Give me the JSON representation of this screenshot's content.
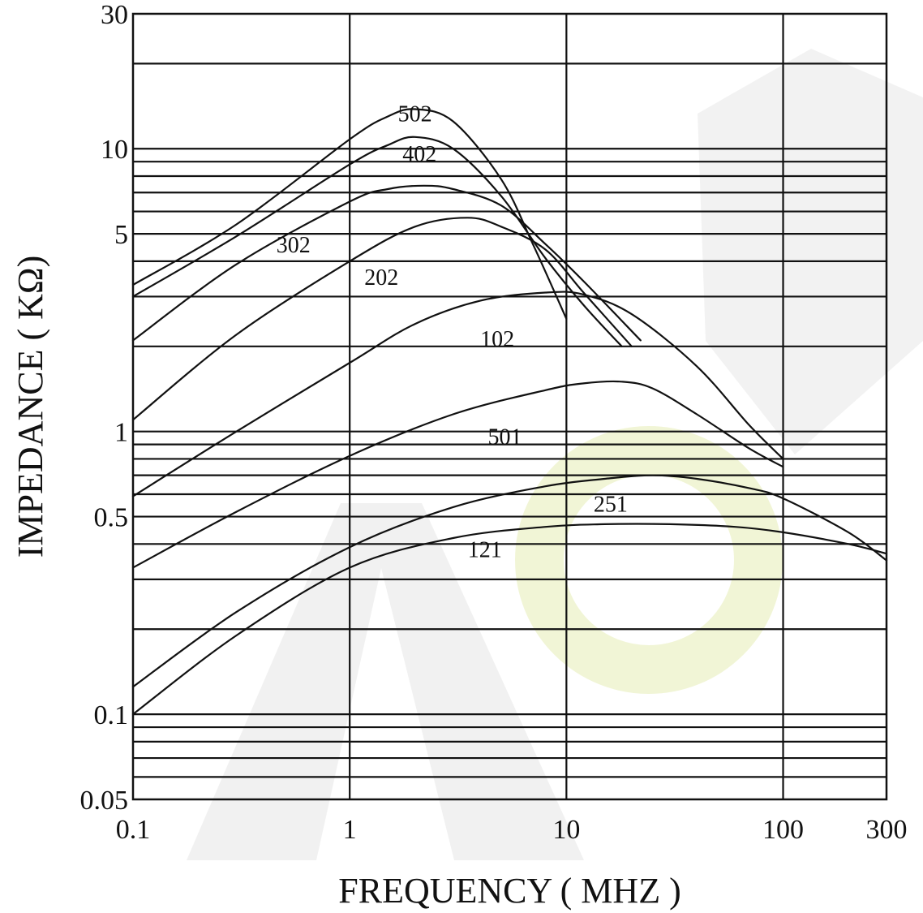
{
  "chart_data": {
    "type": "line",
    "xlabel": "FREQUENCY ( MHZ )",
    "ylabel": "IMPEDANCE ( KΩ)",
    "x_scale": "log",
    "y_scale": "log",
    "xlim": [
      0.1,
      300
    ],
    "ylim": [
      0.05,
      30
    ],
    "x_ticks": [
      {
        "value": 0.1,
        "label": "0.1"
      },
      {
        "value": 1,
        "label": "1"
      },
      {
        "value": 10,
        "label": "10"
      },
      {
        "value": 100,
        "label": "100"
      },
      {
        "value": 300,
        "label": "300"
      }
    ],
    "y_ticks": [
      {
        "value": 30,
        "label": "30"
      },
      {
        "value": 10,
        "label": "10"
      },
      {
        "value": 5,
        "label": "5"
      },
      {
        "value": 1,
        "label": "1"
      },
      {
        "value": 0.5,
        "label": "0.5"
      },
      {
        "value": 0.1,
        "label": "0.1"
      },
      {
        "value": 0.05,
        "label": "0.05"
      }
    ],
    "x_gridlines": [
      1,
      10,
      100
    ],
    "y_gridlines": [
      0.06,
      0.07,
      0.08,
      0.09,
      0.1,
      0.2,
      0.3,
      0.4,
      0.5,
      0.6,
      0.7,
      0.8,
      0.9,
      1,
      2,
      3,
      4,
      5,
      6,
      7,
      8,
      9,
      10,
      20
    ],
    "grid": true,
    "legend": "none",
    "watermark": {
      "color": "#e6e6e6",
      "accent": "#eef2cc"
    },
    "series": [
      {
        "name": "502",
        "label_at": [
          2.0,
          12.5
        ],
        "x": [
          0.1,
          0.3,
          1,
          1.5,
          2.0,
          3.0,
          5.0,
          7.0,
          10
        ],
        "y": [
          3.3,
          5.4,
          10.8,
          13.0,
          13.8,
          12.5,
          7.8,
          4.6,
          2.5
        ]
      },
      {
        "name": "402",
        "label_at": [
          2.1,
          9.0
        ],
        "x": [
          0.1,
          0.3,
          1,
          1.5,
          2.0,
          3.0,
          5.0,
          8.0,
          12,
          18
        ],
        "y": [
          3.0,
          4.9,
          8.8,
          10.3,
          11.0,
          10.0,
          6.8,
          4.1,
          2.8,
          2.0
        ]
      },
      {
        "name": "302",
        "label_at": [
          0.55,
          4.3
        ],
        "x": [
          0.1,
          0.3,
          1,
          1.5,
          2.2,
          3.0,
          5.0,
          8.0,
          12,
          22
        ],
        "y": [
          2.1,
          3.9,
          6.5,
          7.2,
          7.4,
          7.2,
          6.3,
          4.6,
          3.4,
          2.1
        ]
      },
      {
        "name": "202",
        "label_at": [
          1.4,
          3.3
        ],
        "x": [
          0.1,
          0.3,
          1,
          2.0,
          3.5,
          5.0,
          8.0,
          12,
          20
        ],
        "y": [
          1.1,
          2.2,
          4.0,
          5.3,
          5.7,
          5.3,
          4.4,
          3.1,
          2.0
        ]
      },
      {
        "name": "102",
        "label_at": [
          4.8,
          2.0
        ],
        "x": [
          0.1,
          0.3,
          1,
          2.0,
          4.0,
          8.0,
          12,
          20,
          40,
          70,
          100
        ],
        "y": [
          0.59,
          1.0,
          1.75,
          2.4,
          2.9,
          3.1,
          3.05,
          2.6,
          1.7,
          1.05,
          0.8
        ]
      },
      {
        "name": "501",
        "label_at": [
          5.2,
          0.9
        ],
        "x": [
          0.1,
          0.3,
          1,
          3.0,
          8.0,
          12,
          18,
          25,
          40,
          70,
          100
        ],
        "y": [
          0.33,
          0.52,
          0.82,
          1.15,
          1.4,
          1.48,
          1.5,
          1.42,
          1.15,
          0.87,
          0.75
        ]
      },
      {
        "name": "251",
        "label_at": [
          16,
          0.52
        ],
        "x": [
          0.1,
          0.3,
          1,
          3.0,
          8.0,
          15,
          25,
          40,
          70,
          100,
          200,
          300
        ],
        "y": [
          0.125,
          0.23,
          0.39,
          0.54,
          0.64,
          0.68,
          0.7,
          0.68,
          0.63,
          0.58,
          0.44,
          0.35
        ]
      },
      {
        "name": "121",
        "label_at": [
          4.2,
          0.36
        ],
        "x": [
          0.1,
          0.3,
          1,
          3.0,
          8.0,
          15,
          30,
          60,
          100,
          200,
          300
        ],
        "y": [
          0.1,
          0.19,
          0.33,
          0.42,
          0.46,
          0.47,
          0.47,
          0.46,
          0.44,
          0.4,
          0.37
        ]
      }
    ]
  }
}
